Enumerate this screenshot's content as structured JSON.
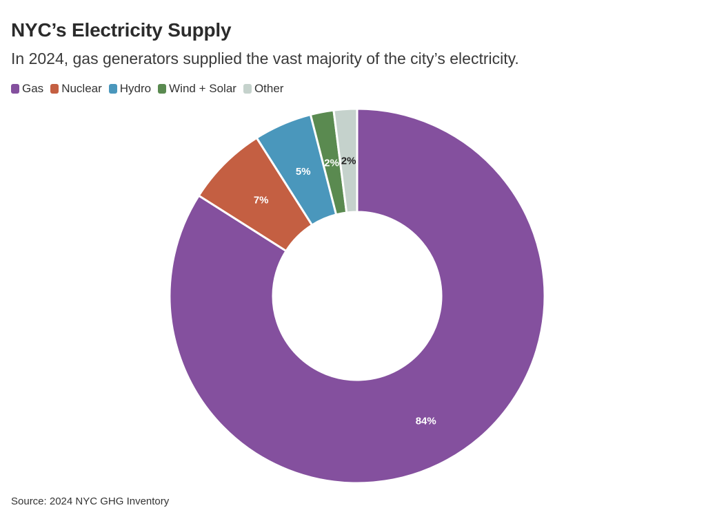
{
  "header": {
    "title": "NYC’s Electricity Supply",
    "subtitle": "In 2024, gas generators supplied the vast majority of the city’s electricity."
  },
  "footer": {
    "source": "Source: 2024 NYC GHG Inventory"
  },
  "chart_data": {
    "type": "pie",
    "variant": "donut",
    "title": "NYC’s Electricity Supply",
    "legend_position": "top-left",
    "categories": [
      "Gas",
      "Nuclear",
      "Hydro",
      "Wind + Solar",
      "Other"
    ],
    "values": [
      84,
      7,
      5,
      2,
      2
    ],
    "labels": [
      "84%",
      "7%",
      "5%",
      "2%",
      "2%"
    ],
    "colors": [
      "#84509e",
      "#c45f42",
      "#4a97bc",
      "#5a8a50",
      "#c5d2cc"
    ],
    "label_colors": [
      "#ffffff",
      "#ffffff",
      "#ffffff",
      "#ffffff",
      "#222222"
    ]
  }
}
